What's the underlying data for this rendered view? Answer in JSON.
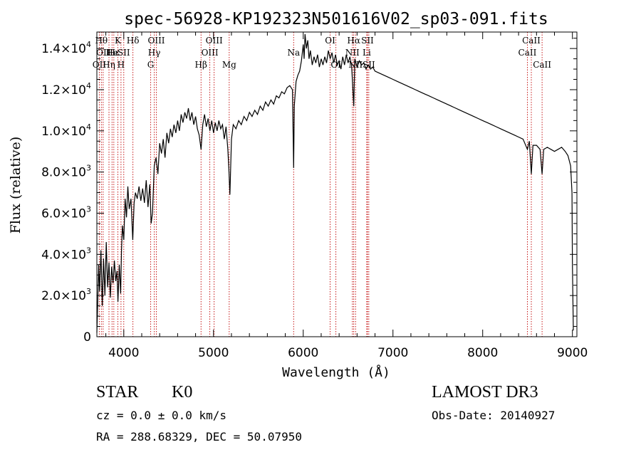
{
  "chart_data": {
    "type": "line",
    "title": "spec-56928-KP192323N501616V02_sp03-091.fits",
    "xlabel": "Wavelength (Å)",
    "ylabel": "Flux (relative)",
    "xlim": [
      3700,
      9050
    ],
    "ylim": [
      0,
      14800
    ],
    "x_ticks": [
      {
        "value": 4000,
        "label": "4000"
      },
      {
        "value": 5000,
        "label": "5000"
      },
      {
        "value": 6000,
        "label": "6000"
      },
      {
        "value": 7000,
        "label": "7000"
      },
      {
        "value": 8000,
        "label": "8000"
      },
      {
        "value": 9000,
        "label": "9000"
      }
    ],
    "y_ticks": [
      {
        "value": 0,
        "mant": "0",
        "exp": ""
      },
      {
        "value": 2000,
        "mant": "2.0×10",
        "exp": "3"
      },
      {
        "value": 4000,
        "mant": "4.0×10",
        "exp": "3"
      },
      {
        "value": 6000,
        "mant": "6.0×10",
        "exp": "3"
      },
      {
        "value": 8000,
        "mant": "8.0×10",
        "exp": "3"
      },
      {
        "value": 10000,
        "mant": "1.0×10",
        "exp": "4"
      },
      {
        "value": 12000,
        "mant": "1.2×10",
        "exp": "4"
      },
      {
        "value": 14000,
        "mant": "1.4×10",
        "exp": "4"
      }
    ],
    "spectrum": [
      [
        3700,
        200
      ],
      [
        3710,
        1800
      ],
      [
        3720,
        3500
      ],
      [
        3730,
        2200
      ],
      [
        3745,
        4200
      ],
      [
        3760,
        1500
      ],
      [
        3775,
        3800
      ],
      [
        3790,
        2000
      ],
      [
        3805,
        4600
      ],
      [
        3820,
        2400
      ],
      [
        3835,
        3600
      ],
      [
        3850,
        1900
      ],
      [
        3865,
        3400
      ],
      [
        3880,
        2600
      ],
      [
        3895,
        3700
      ],
      [
        3910,
        2700
      ],
      [
        3925,
        3200
      ],
      [
        3935,
        1700
      ],
      [
        3950,
        3500
      ],
      [
        3965,
        2100
      ],
      [
        3975,
        4200
      ],
      [
        3985,
        5400
      ],
      [
        4000,
        4700
      ],
      [
        4015,
        6700
      ],
      [
        4030,
        5800
      ],
      [
        4045,
        7300
      ],
      [
        4060,
        6200
      ],
      [
        4080,
        6700
      ],
      [
        4100,
        4700
      ],
      [
        4115,
        6500
      ],
      [
        4130,
        7000
      ],
      [
        4150,
        6700
      ],
      [
        4170,
        7300
      ],
      [
        4190,
        6600
      ],
      [
        4210,
        7200
      ],
      [
        4230,
        6500
      ],
      [
        4250,
        7600
      ],
      [
        4270,
        6300
      ],
      [
        4290,
        7400
      ],
      [
        4305,
        5500
      ],
      [
        4320,
        6000
      ],
      [
        4340,
        8300
      ],
      [
        4360,
        8700
      ],
      [
        4380,
        7900
      ],
      [
        4400,
        9400
      ],
      [
        4420,
        8900
      ],
      [
        4440,
        9600
      ],
      [
        4460,
        8700
      ],
      [
        4480,
        9900
      ],
      [
        4500,
        9400
      ],
      [
        4520,
        10100
      ],
      [
        4540,
        9700
      ],
      [
        4560,
        10300
      ],
      [
        4580,
        9900
      ],
      [
        4600,
        10500
      ],
      [
        4620,
        10000
      ],
      [
        4640,
        10800
      ],
      [
        4660,
        10400
      ],
      [
        4680,
        10900
      ],
      [
        4700,
        10600
      ],
      [
        4720,
        11100
      ],
      [
        4740,
        10500
      ],
      [
        4760,
        10900
      ],
      [
        4780,
        10300
      ],
      [
        4800,
        10700
      ],
      [
        4820,
        10100
      ],
      [
        4840,
        9800
      ],
      [
        4861,
        9100
      ],
      [
        4880,
        10300
      ],
      [
        4900,
        10800
      ],
      [
        4920,
        10200
      ],
      [
        4940,
        10600
      ],
      [
        4960,
        10000
      ],
      [
        4980,
        10500
      ],
      [
        5000,
        9900
      ],
      [
        5020,
        10400
      ],
      [
        5040,
        10000
      ],
      [
        5060,
        10500
      ],
      [
        5080,
        10100
      ],
      [
        5100,
        10300
      ],
      [
        5120,
        9600
      ],
      [
        5140,
        10200
      ],
      [
        5160,
        9100
      ],
      [
        5172,
        8100
      ],
      [
        5183,
        6900
      ],
      [
        5200,
        9600
      ],
      [
        5220,
        10300
      ],
      [
        5250,
        10100
      ],
      [
        5280,
        10500
      ],
      [
        5310,
        10300
      ],
      [
        5340,
        10700
      ],
      [
        5370,
        10500
      ],
      [
        5400,
        10900
      ],
      [
        5430,
        10700
      ],
      [
        5460,
        11000
      ],
      [
        5490,
        10800
      ],
      [
        5520,
        11200
      ],
      [
        5550,
        11000
      ],
      [
        5580,
        11400
      ],
      [
        5610,
        11200
      ],
      [
        5640,
        11500
      ],
      [
        5670,
        11300
      ],
      [
        5700,
        11700
      ],
      [
        5730,
        11600
      ],
      [
        5760,
        11900
      ],
      [
        5790,
        11800
      ],
      [
        5820,
        12100
      ],
      [
        5850,
        12200
      ],
      [
        5880,
        12000
      ],
      [
        5893,
        8200
      ],
      [
        5900,
        11200
      ],
      [
        5920,
        12400
      ],
      [
        5940,
        12700
      ],
      [
        5960,
        12900
      ],
      [
        5980,
        13400
      ],
      [
        6000,
        14200
      ],
      [
        6010,
        13500
      ],
      [
        6020,
        14700
      ],
      [
        6035,
        14000
      ],
      [
        6050,
        14400
      ],
      [
        6065,
        13500
      ],
      [
        6080,
        13900
      ],
      [
        6100,
        13200
      ],
      [
        6120,
        13600
      ],
      [
        6140,
        13300
      ],
      [
        6160,
        13700
      ],
      [
        6180,
        13100
      ],
      [
        6200,
        13500
      ],
      [
        6220,
        13200
      ],
      [
        6240,
        13600
      ],
      [
        6260,
        13300
      ],
      [
        6280,
        13900
      ],
      [
        6300,
        13500
      ],
      [
        6320,
        13800
      ],
      [
        6340,
        13300
      ],
      [
        6360,
        13700
      ],
      [
        6380,
        13200
      ],
      [
        6400,
        13400
      ],
      [
        6420,
        13000
      ],
      [
        6440,
        13600
      ],
      [
        6460,
        13200
      ],
      [
        6480,
        13700
      ],
      [
        6500,
        13300
      ],
      [
        6520,
        13600
      ],
      [
        6540,
        13100
      ],
      [
        6563,
        11200
      ],
      [
        6575,
        13500
      ],
      [
        6600,
        13100
      ],
      [
        6625,
        13400
      ],
      [
        6650,
        13200
      ],
      [
        6675,
        13300
      ],
      [
        6700,
        13000
      ],
      [
        6725,
        13200
      ],
      [
        6750,
        13000
      ],
      [
        6775,
        13100
      ],
      [
        6800,
        12900
      ],
      [
        6850,
        12800
      ],
      [
        6900,
        12700
      ],
      [
        6950,
        12600
      ],
      [
        7000,
        12500
      ],
      [
        7050,
        12400
      ],
      [
        7100,
        12300
      ],
      [
        7150,
        12200
      ],
      [
        7200,
        12100
      ],
      [
        7250,
        12000
      ],
      [
        7300,
        11900
      ],
      [
        7350,
        11800
      ],
      [
        7400,
        11700
      ],
      [
        7450,
        11600
      ],
      [
        7500,
        11500
      ],
      [
        7550,
        11400
      ],
      [
        7600,
        11300
      ],
      [
        7650,
        11200
      ],
      [
        7700,
        11100
      ],
      [
        7750,
        11000
      ],
      [
        7800,
        10900
      ],
      [
        7850,
        10800
      ],
      [
        7900,
        10700
      ],
      [
        7950,
        10600
      ],
      [
        8000,
        10500
      ],
      [
        8050,
        10400
      ],
      [
        8100,
        10300
      ],
      [
        8150,
        10200
      ],
      [
        8200,
        10100
      ],
      [
        8250,
        10000
      ],
      [
        8300,
        9900
      ],
      [
        8350,
        9800
      ],
      [
        8400,
        9700
      ],
      [
        8450,
        9600
      ],
      [
        8498,
        9100
      ],
      [
        8520,
        9500
      ],
      [
        8542,
        7900
      ],
      [
        8560,
        9300
      ],
      [
        8600,
        9300
      ],
      [
        8640,
        9100
      ],
      [
        8662,
        7900
      ],
      [
        8680,
        9100
      ],
      [
        8720,
        9200
      ],
      [
        8760,
        9100
      ],
      [
        8800,
        9000
      ],
      [
        8840,
        9100
      ],
      [
        8880,
        9200
      ],
      [
        8920,
        9000
      ],
      [
        8950,
        8800
      ],
      [
        8980,
        8300
      ],
      [
        8995,
        7000
      ],
      [
        9000,
        3500
      ],
      [
        9010,
        300
      ]
    ],
    "spectral_lines": [
      {
        "wave": 3727,
        "label": "OII",
        "row": 2
      },
      {
        "wave": 3750,
        "label": "Hθ",
        "row": 0
      },
      {
        "wave": 3770,
        "label": "OII",
        "row": 1
      },
      {
        "wave": 3835,
        "label": "Hη",
        "row": 2
      },
      {
        "wave": 3869,
        "label": "He",
        "row": 1
      },
      {
        "wave": 3889,
        "label": "Hε",
        "row": 1
      },
      {
        "wave": 3934,
        "label": "K",
        "row": 0
      },
      {
        "wave": 3969,
        "label": "H",
        "row": 2
      },
      {
        "wave": 4000,
        "label": "SII",
        "row": 1
      },
      {
        "wave": 4102,
        "label": "Hδ",
        "row": 0
      },
      {
        "wave": 4300,
        "label": "G",
        "row": 2
      },
      {
        "wave": 4340,
        "label": "Hγ",
        "row": 1
      },
      {
        "wave": 4363,
        "label": "OIII",
        "row": 0
      },
      {
        "wave": 4861,
        "label": "Hβ",
        "row": 2
      },
      {
        "wave": 4959,
        "label": "OIII",
        "row": 1
      },
      {
        "wave": 5007,
        "label": "OIII",
        "row": 0
      },
      {
        "wave": 5175,
        "label": "Mg",
        "row": 2
      },
      {
        "wave": 5893,
        "label": "Na",
        "row": 1
      },
      {
        "wave": 6300,
        "label": "OI",
        "row": 0
      },
      {
        "wave": 6364,
        "label": "OI",
        "row": 2
      },
      {
        "wave": 6548,
        "label": "NII",
        "row": 1
      },
      {
        "wave": 6563,
        "label": "Hα",
        "row": 0
      },
      {
        "wave": 6583,
        "label": "NII",
        "row": 2
      },
      {
        "wave": 6708,
        "label": "Li",
        "row": 1
      },
      {
        "wave": 6716,
        "label": "SII",
        "row": 0
      },
      {
        "wave": 6731,
        "label": "SII",
        "row": 2
      },
      {
        "wave": 8498,
        "label": "CaII",
        "row": 1
      },
      {
        "wave": 8542,
        "label": "CaII",
        "row": 0
      },
      {
        "wave": 8662,
        "label": "CaII",
        "row": 2
      }
    ],
    "colors": {
      "spectrum": "#000000",
      "lines": "#c00000",
      "axes": "#000000"
    }
  },
  "info": {
    "object_type": "STAR",
    "subclass": "K0",
    "survey": "LAMOST DR3",
    "redshift": "cz =  0.0 ± 0.0 km/s",
    "obs_date": "Obs-Date: 20140927",
    "coords": "RA = 288.68329, DEC =  50.07950"
  }
}
